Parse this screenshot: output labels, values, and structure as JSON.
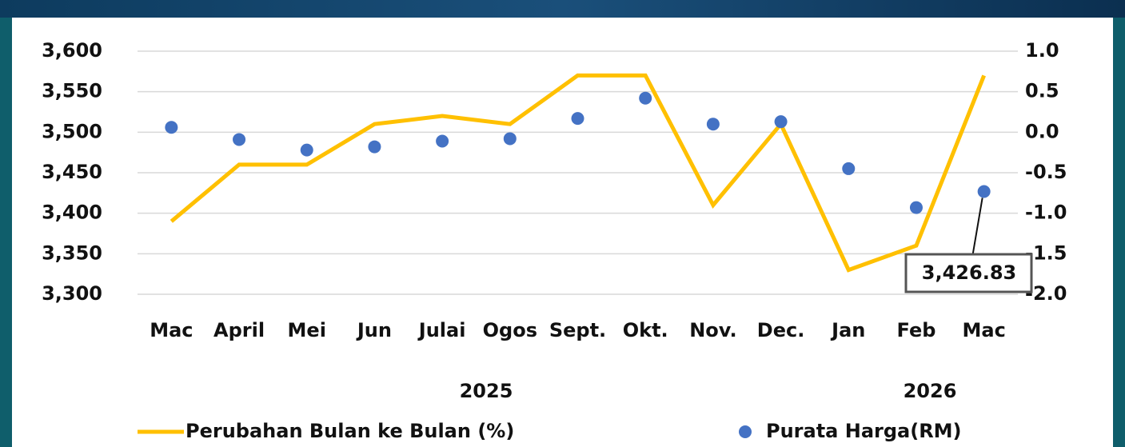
{
  "chart_data": {
    "type": "line",
    "categories": [
      "Mac",
      "April",
      "Mei",
      "Jun",
      "Julai",
      "Ogos",
      "Sept.",
      "Okt.",
      "Nov.",
      "Dec.",
      "Jan",
      "Feb",
      "Mac"
    ],
    "year_labels": [
      "2025",
      "2026"
    ],
    "series": [
      {
        "name": "Perubahan Bulan ke Bulan (%)",
        "type": "line",
        "axis": "y2",
        "color": "#ffc000",
        "values": [
          -1.1,
          -0.4,
          -0.4,
          0.1,
          0.2,
          0.1,
          0.7,
          0.7,
          -0.9,
          0.1,
          -1.7,
          -1.4,
          0.7
        ]
      },
      {
        "name": "Purata Harga(RM)",
        "type": "scatter",
        "axis": "y",
        "color": "#4472c4",
        "values": [
          3506,
          3491,
          3478,
          3482,
          3489,
          3492,
          3517,
          3542,
          3510,
          3513,
          3455,
          3407,
          3426.83
        ],
        "value_labels": [
          null,
          null,
          null,
          null,
          null,
          null,
          null,
          null,
          null,
          null,
          null,
          null,
          "3,426.83"
        ]
      }
    ],
    "ylim": [
      3300,
      3600
    ],
    "yticks": [
      {
        "value": 3300,
        "label": "3,300"
      },
      {
        "value": 3350,
        "label": "3,350"
      },
      {
        "value": 3400,
        "label": "3,400"
      },
      {
        "value": 3450,
        "label": "3,450"
      },
      {
        "value": 3500,
        "label": "3,500"
      },
      {
        "value": 3550,
        "label": "3,550"
      },
      {
        "value": 3600,
        "label": "3,600"
      }
    ],
    "y2lim": [
      -2.0,
      1.0
    ],
    "y2ticks": [
      {
        "value": -2.0,
        "label": "-2.0"
      },
      {
        "value": -1.5,
        "label": "-1.5"
      },
      {
        "value": -1.0,
        "label": "-1.0"
      },
      {
        "value": -0.5,
        "label": "-0.5"
      },
      {
        "value": 0.0,
        "label": "0.0"
      },
      {
        "value": 0.5,
        "label": "0.5"
      },
      {
        "value": 1.0,
        "label": "1.0"
      }
    ],
    "grid": true,
    "legend": "bottom"
  }
}
